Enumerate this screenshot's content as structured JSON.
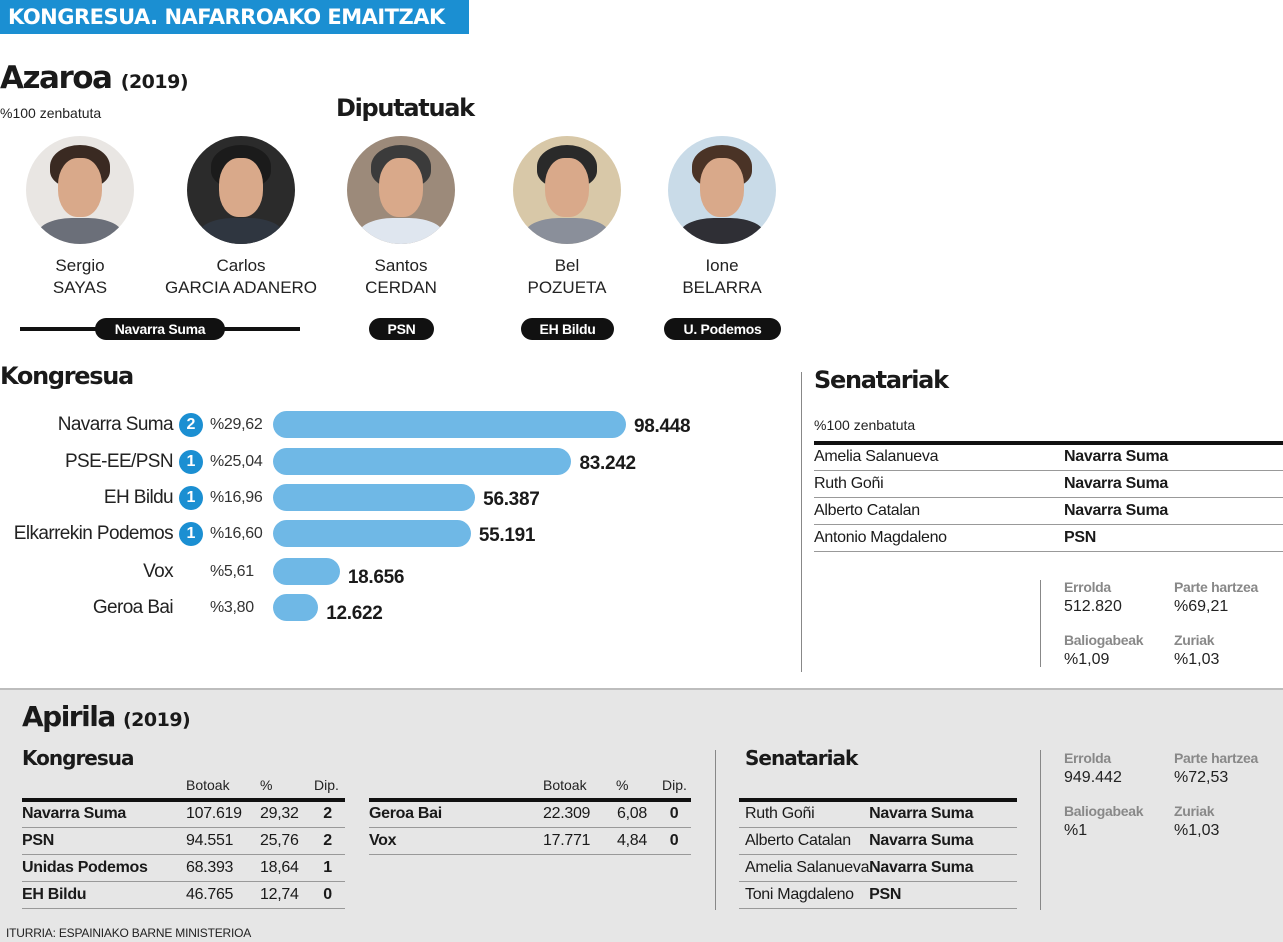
{
  "banner": "KONGRESUA. NAFARROAKO EMAITZAK",
  "azaroa": {
    "title": "Azaroa",
    "year": "(2019)",
    "counted": "%100 zenbatuta",
    "diputatuak_title": "Diputatuak",
    "candidates": [
      {
        "first": "Sergio",
        "last": "SAYAS",
        "colors": {
          "bg": "#e9e6e3",
          "hair": "#3a2a22",
          "body": "#6b6f79"
        }
      },
      {
        "first": "Carlos",
        "last": "GARCIA ADANERO",
        "colors": {
          "bg": "#2b2b2b",
          "hair": "#1b1b1b",
          "body": "#2f3640"
        }
      },
      {
        "first": "Santos",
        "last": "CERDAN",
        "colors": {
          "bg": "#9c8a7a",
          "hair": "#3b3b3b",
          "body": "#dfe6ef"
        }
      },
      {
        "first": "Bel",
        "last": "POZUETA",
        "colors": {
          "bg": "#d8c8a8",
          "hair": "#2a2a2a",
          "body": "#8a8f9a"
        }
      },
      {
        "first": "Ione",
        "last": "BELARRA",
        "colors": {
          "bg": "#c9dbe8",
          "hair": "#4a3326",
          "body": "#2f2f35"
        }
      }
    ],
    "parties": [
      "Navarra Suma",
      "PSN",
      "EH Bildu",
      "U. Podemos"
    ]
  },
  "kongresua": {
    "title": "Kongresua",
    "seat_color": "#1b8fd2",
    "bar_color": "#6fb8e6"
  },
  "chart_data": {
    "type": "bar",
    "orientation": "horizontal",
    "title": "Kongresua",
    "categories": [
      "Navarra Suma",
      "PSE-EE/PSN",
      "EH Bildu",
      "Elkarrekin Podemos",
      "Vox",
      "Geroa Bai"
    ],
    "seats": [
      2,
      1,
      1,
      1,
      null,
      null
    ],
    "percent_labels": [
      "%29,62",
      "%25,04",
      "%16,96",
      "%16,60",
      "%5,61",
      "%3,80"
    ],
    "values": [
      98448,
      83242,
      56387,
      55191,
      18656,
      12622
    ],
    "value_labels": [
      "98.448",
      "83.242",
      "56.387",
      "55.191",
      "18.656",
      "12.622"
    ],
    "xlim": [
      0,
      98448
    ]
  },
  "senatariak": {
    "title": "Senatariak",
    "counted": "%100 zenbatuta",
    "rows": [
      {
        "name": "Amelia Salanueva",
        "party": "Navarra Suma"
      },
      {
        "name": "Ruth Goñi",
        "party": "Navarra Suma"
      },
      {
        "name": "Alberto Catalan",
        "party": "Navarra Suma"
      },
      {
        "name": "Antonio Magdaleno",
        "party": "PSN"
      }
    ]
  },
  "stats_nov": {
    "errolda_label": "Errolda",
    "errolda": "512.820",
    "parte_label": "Parte hartzea",
    "parte": "%69,21",
    "baliogabeak_label": "Baliogabeak",
    "baliogabeak": "%1,09",
    "zuriak_label": "Zuriak",
    "zuriak": "%1,03"
  },
  "apirila": {
    "title": "Apirila",
    "year": "(2019)",
    "kongresua_title": "Kongresua",
    "headers": {
      "votes": "Botoak",
      "pct": "%",
      "seats": "Dip."
    },
    "table_left": [
      {
        "party": "Navarra Suma",
        "votes": "107.619",
        "pct": "29,32",
        "seats": "2"
      },
      {
        "party": "PSN",
        "votes": "94.551",
        "pct": "25,76",
        "seats": "2"
      },
      {
        "party": "Unidas Podemos",
        "votes": "68.393",
        "pct": "18,64",
        "seats": "1"
      },
      {
        "party": "EH Bildu",
        "votes": "46.765",
        "pct": "12,74",
        "seats": "0"
      }
    ],
    "table_right": [
      {
        "party": "Geroa Bai",
        "votes": "22.309",
        "pct": "6,08",
        "seats": "0"
      },
      {
        "party": "Vox",
        "votes": "17.771",
        "pct": "4,84",
        "seats": "0"
      }
    ],
    "senatariak_title": "Senatariak",
    "senatariak": [
      {
        "name": "Ruth Goñi",
        "party": "Navarra Suma"
      },
      {
        "name": "Alberto Catalan",
        "party": "Navarra Suma"
      },
      {
        "name": "Amelia Salanueva",
        "party": "Navarra Suma"
      },
      {
        "name": "Toni Magdaleno",
        "party": "PSN"
      }
    ],
    "stats": {
      "errolda_label": "Errolda",
      "errolda": "949.442",
      "parte_label": "Parte hartzea",
      "parte": "%72,53",
      "baliogabeak_label": "Baliogabeak",
      "baliogabeak": "%1",
      "zuriak_label": "Zuriak",
      "zuriak": "%1,03"
    }
  },
  "source": "ITURRIA: ESPAINIAKO BARNE MINISTERIOA"
}
